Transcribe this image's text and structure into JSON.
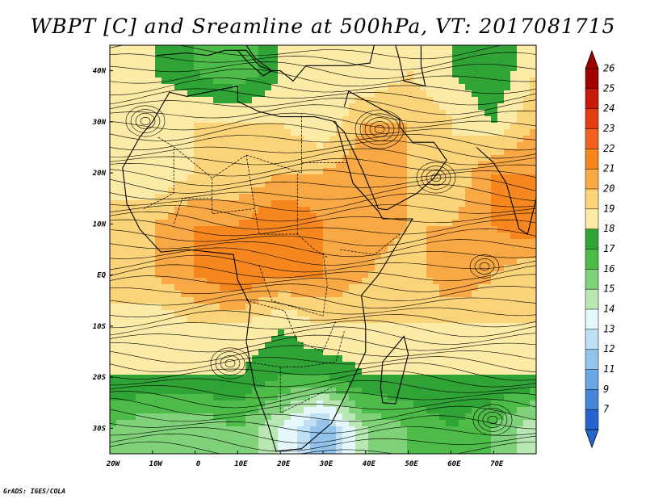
{
  "title": "WBPT [C] and Sreamline at 500hPa, VT: 2017081715",
  "credit": "GrADS: IGES/COLA",
  "axes": {
    "lat_labels": [
      "40N",
      "30N",
      "20N",
      "10N",
      "EQ",
      "10S",
      "20S",
      "30S"
    ],
    "lon_labels": [
      "20W",
      "10W",
      "0",
      "10E",
      "20E",
      "30E",
      "40E",
      "50E",
      "60E",
      "70E"
    ]
  },
  "colorbar": {
    "labels": [
      "26",
      "25",
      "24",
      "23",
      "22",
      "21",
      "20",
      "19",
      "18",
      "17",
      "16",
      "15",
      "14",
      "13",
      "12",
      "11",
      "9",
      "7"
    ],
    "colors": [
      "#a00000",
      "#c81a0a",
      "#e23c10",
      "#f26022",
      "#f6861e",
      "#f8a844",
      "#fbd479",
      "#fbeba6",
      "#2fa336",
      "#4cbb48",
      "#7fd17a",
      "#b9e8b4",
      "#e4f7f9",
      "#bfe0f4",
      "#94c4ec",
      "#6aa6e3",
      "#4685d8",
      "#2464cc"
    ]
  },
  "chart_data": {
    "type": "heatmap",
    "variable": "WBPT [C]",
    "level": "500hPa",
    "valid_time": "2017081715",
    "lon_range": [
      -20,
      80
    ],
    "lat_range": [
      -35,
      45
    ],
    "levels": [
      7,
      9,
      11,
      12,
      13,
      14,
      15,
      16,
      17,
      18,
      19,
      20,
      21,
      22,
      23,
      24,
      25,
      26
    ],
    "lat": [
      40,
      30,
      20,
      10,
      0,
      -10,
      -20,
      -30
    ],
    "lon": [
      -20,
      -10,
      0,
      10,
      20,
      30,
      40,
      50,
      60,
      70,
      80
    ],
    "values": [
      [
        19,
        19,
        18,
        17,
        19,
        20,
        19,
        20,
        19,
        18,
        20
      ],
      [
        19,
        20,
        20,
        20,
        20,
        19,
        21,
        21,
        20,
        19,
        21
      ],
      [
        19,
        19,
        20,
        20,
        21,
        21,
        22,
        21,
        20,
        22,
        22
      ],
      [
        21,
        21,
        22,
        22,
        23,
        22,
        22,
        21,
        21,
        22,
        23
      ],
      [
        20,
        21,
        22,
        23,
        22,
        22,
        21,
        20,
        22,
        21,
        20
      ],
      [
        20,
        19,
        20,
        20,
        19,
        20,
        20,
        20,
        20,
        20,
        20
      ],
      [
        19,
        19,
        19,
        19,
        18,
        18,
        19,
        19,
        19,
        19,
        19
      ],
      [
        17,
        16,
        16,
        17,
        15,
        12,
        16,
        17,
        18,
        17,
        15
      ]
    ]
  }
}
